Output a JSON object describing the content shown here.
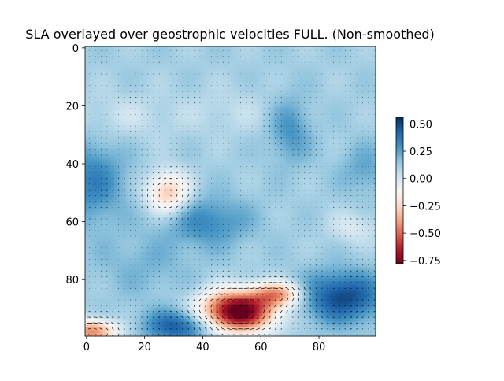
{
  "chart_data": {
    "type": "heatmap",
    "title": "SLA overlayed over geostrophic velocities FULL. (Non-smoothed)",
    "xlabel": "",
    "ylabel": "",
    "xlim": [
      -0.5,
      99.5
    ],
    "ylim": [
      99.5,
      -0.5
    ],
    "x_ticks": [
      0,
      20,
      40,
      60,
      80
    ],
    "y_ticks": [
      0,
      20,
      40,
      60,
      80
    ],
    "colorbar": {
      "cmap": "RdBu",
      "vmin": -0.78,
      "vmax": 0.56,
      "ticks": [
        0.5,
        0.25,
        0.0,
        -0.25,
        -0.5,
        -0.75
      ],
      "tick_labels": [
        "0.50",
        "0.25",
        "0.00",
        "−0.25",
        "−0.50",
        "−0.75"
      ]
    },
    "sla_base": 0.12,
    "sla_features": [
      {
        "x": 2,
        "y": 46,
        "sx": 8,
        "sy": 10,
        "amp": 0.22
      },
      {
        "x": 28,
        "y": 50,
        "sx": 5,
        "sy": 5,
        "amp": -0.42
      },
      {
        "x": 42,
        "y": 60,
        "sx": 10,
        "sy": 6,
        "amp": 0.2
      },
      {
        "x": 52,
        "y": 91,
        "sx": 9,
        "sy": 5,
        "amp": -0.95
      },
      {
        "x": 66,
        "y": 85,
        "sx": 6,
        "sy": 3,
        "amp": -0.45
      },
      {
        "x": 88,
        "y": 86,
        "sx": 10,
        "sy": 6,
        "amp": 0.38
      },
      {
        "x": 2,
        "y": 98,
        "sx": 6,
        "sy": 3,
        "amp": -0.55
      },
      {
        "x": 32,
        "y": 96,
        "sx": 8,
        "sy": 4,
        "amp": 0.35
      },
      {
        "x": 70,
        "y": 28,
        "sx": 5,
        "sy": 8,
        "amp": 0.18
      },
      {
        "x": 12,
        "y": 24,
        "sx": 12,
        "sy": 6,
        "amp": -0.08
      },
      {
        "x": 50,
        "y": 22,
        "sx": 14,
        "sy": 6,
        "amp": -0.06
      },
      {
        "x": 92,
        "y": 62,
        "sx": 6,
        "sy": 4,
        "amp": -0.12
      },
      {
        "x": 96,
        "y": 42,
        "sx": 6,
        "sy": 6,
        "amp": 0.12
      },
      {
        "x": 20,
        "y": 75,
        "sx": 12,
        "sy": 8,
        "amp": 0.08
      }
    ]
  }
}
